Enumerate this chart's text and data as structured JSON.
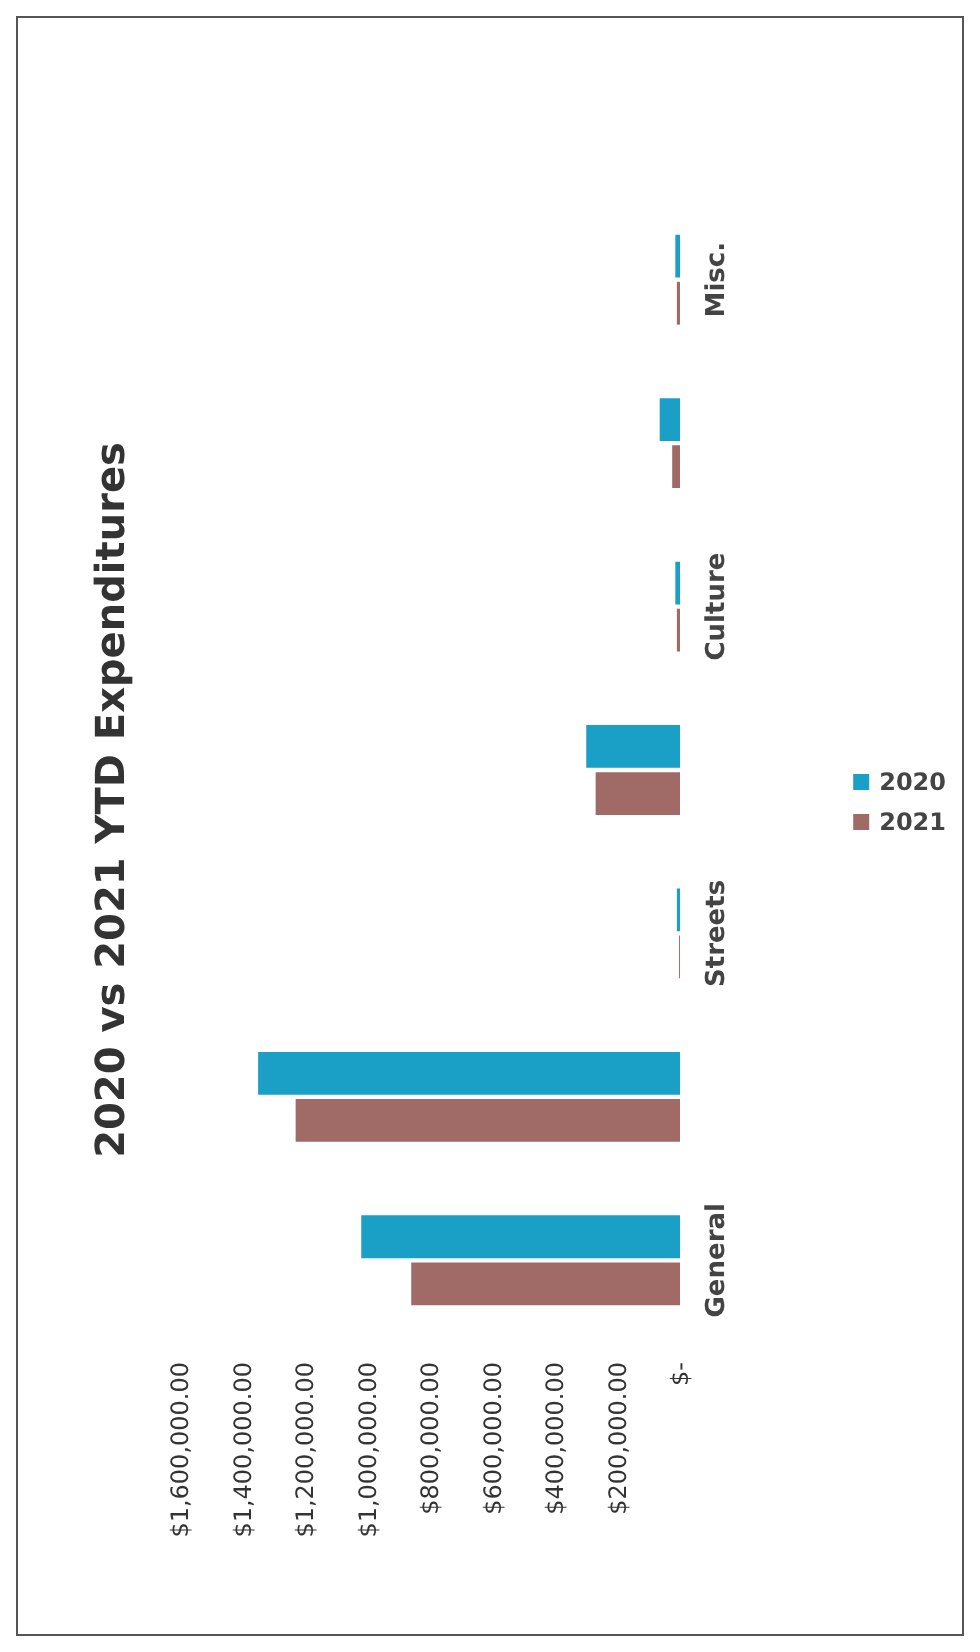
{
  "chart_data": {
    "type": "bar",
    "title": "2020 vs 2021 YTD Expenditures",
    "orientation": "horizontal",
    "categories": [
      "Misc.",
      null,
      "Culture",
      null,
      "Streets",
      null,
      "General"
    ],
    "series": [
      {
        "name": "2020",
        "color": "#1a9fc6",
        "values": [
          15000,
          65000,
          15000,
          300000,
          10000,
          1350000,
          1020000
        ]
      },
      {
        "name": "2021",
        "color": "#a06a66",
        "values": [
          10000,
          25000,
          10000,
          270000,
          3000,
          1230000,
          860000
        ]
      }
    ],
    "xlim": [
      1600000,
      0
    ],
    "xticks": [
      {
        "value": 1600000,
        "label": "$1,600,000.00"
      },
      {
        "value": 1400000,
        "label": "$1,400,000.00"
      },
      {
        "value": 1200000,
        "label": "$1,200,000.00"
      },
      {
        "value": 1000000,
        "label": "$1,000,000.00"
      },
      {
        "value": 800000,
        "label": "$800,000.00"
      },
      {
        "value": 600000,
        "label": "$600,000.00"
      },
      {
        "value": 400000,
        "label": "$400,000.00"
      },
      {
        "value": 200000,
        "label": "$200,000.00"
      },
      {
        "value": 0,
        "label": "$-"
      }
    ],
    "grid": false,
    "legend": "right"
  }
}
